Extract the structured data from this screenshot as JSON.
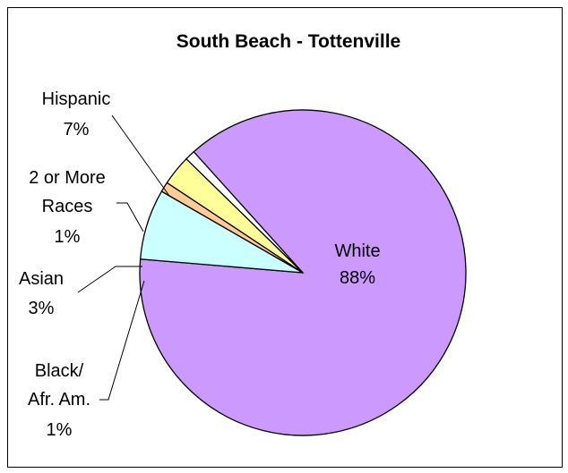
{
  "chart_data": {
    "type": "pie",
    "title": "South Beach - Tottenville",
    "slices": [
      {
        "label": "White",
        "value": 88,
        "display": "88%",
        "color": "#cc99ff"
      },
      {
        "label": "Hispanic",
        "value": 7,
        "display": "7%",
        "color": "#ccffff"
      },
      {
        "label": "2 or More Races",
        "value": 1,
        "display": "1%",
        "color": "#ffcc99"
      },
      {
        "label": "Asian",
        "value": 3,
        "display": "3%",
        "color": "#ffff99"
      },
      {
        "label": "Black/ Afr. Am.",
        "value": 1,
        "display": "1%",
        "color": "#ffffff"
      }
    ],
    "legend": "none",
    "grid": false
  }
}
